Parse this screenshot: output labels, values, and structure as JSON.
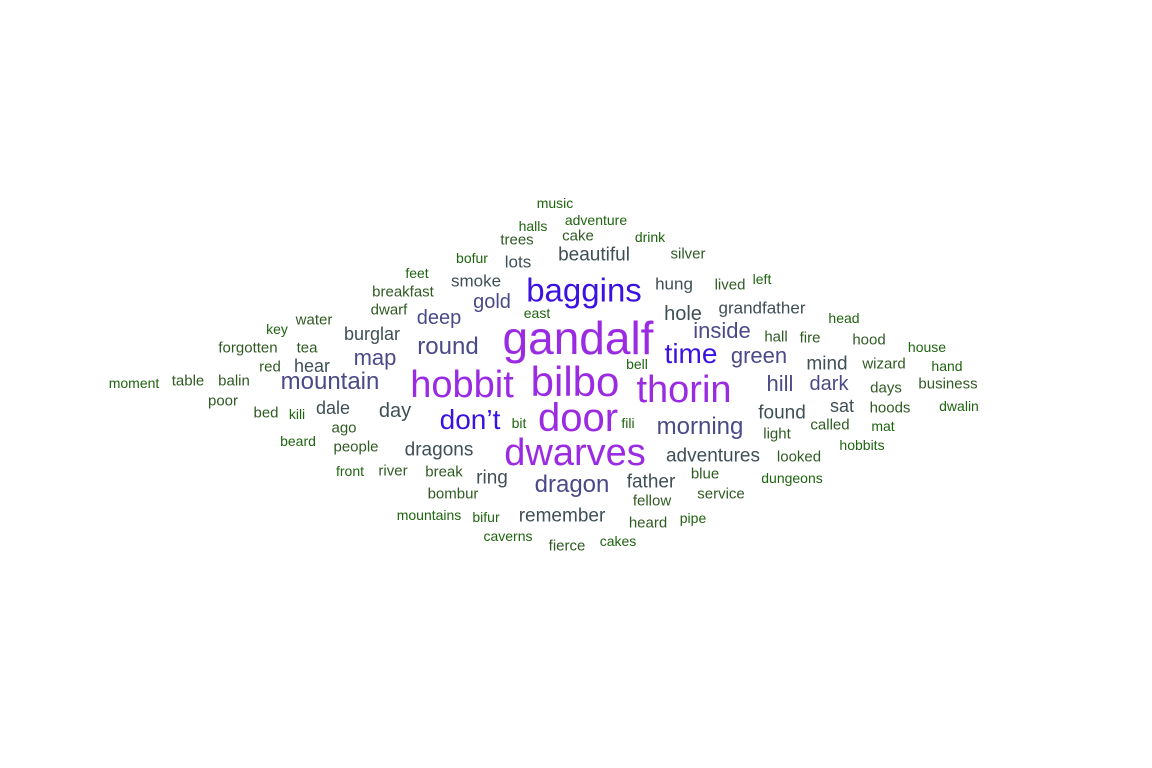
{
  "words": [
    {
      "text": "gandalf",
      "tier": 1
    },
    {
      "text": "bilbo",
      "tier": 1
    },
    {
      "text": "thorin",
      "tier": 1
    },
    {
      "text": "hobbit",
      "tier": 1
    },
    {
      "text": "door",
      "tier": 1
    },
    {
      "text": "dwarves",
      "tier": 1
    },
    {
      "text": "baggins",
      "tier": 2
    },
    {
      "text": "time",
      "tier": 2
    },
    {
      "text": "don’t",
      "tier": 2
    },
    {
      "text": "morning",
      "tier": 3
    },
    {
      "text": "mountain",
      "tier": 3
    },
    {
      "text": "round",
      "tier": 3
    },
    {
      "text": "dragon",
      "tier": 3
    },
    {
      "text": "green",
      "tier": 3
    },
    {
      "text": "inside",
      "tier": 3
    },
    {
      "text": "hill",
      "tier": 3
    },
    {
      "text": "map",
      "tier": 3
    },
    {
      "text": "dark",
      "tier": 3
    },
    {
      "text": "gold",
      "tier": 3
    },
    {
      "text": "deep",
      "tier": 3
    },
    {
      "text": "hole",
      "tier": 4
    },
    {
      "text": "adventures",
      "tier": 4
    },
    {
      "text": "dragons",
      "tier": 4
    },
    {
      "text": "remember",
      "tier": 4
    },
    {
      "text": "father",
      "tier": 4
    },
    {
      "text": "beautiful",
      "tier": 4
    },
    {
      "text": "found",
      "tier": 4
    },
    {
      "text": "day",
      "tier": 4
    },
    {
      "text": "mind",
      "tier": 4
    },
    {
      "text": "ring",
      "tier": 4
    },
    {
      "text": "hear",
      "tier": 4
    },
    {
      "text": "sat",
      "tier": 4
    },
    {
      "text": "burglar",
      "tier": 4
    },
    {
      "text": "dale",
      "tier": 4
    },
    {
      "text": "smoke",
      "tier": 4
    },
    {
      "text": "lots",
      "tier": 4
    },
    {
      "text": "hung",
      "tier": 4
    },
    {
      "text": "grandfather",
      "tier": 4
    },
    {
      "text": "cake",
      "tier": 5
    },
    {
      "text": "trees",
      "tier": 5
    },
    {
      "text": "silver",
      "tier": 5
    },
    {
      "text": "breakfast",
      "tier": 5
    },
    {
      "text": "dwarf",
      "tier": 5
    },
    {
      "text": "lived",
      "tier": 5
    },
    {
      "text": "hall",
      "tier": 5
    },
    {
      "text": "fire",
      "tier": 5
    },
    {
      "text": "hood",
      "tier": 5
    },
    {
      "text": "wizard",
      "tier": 5
    },
    {
      "text": "days",
      "tier": 5
    },
    {
      "text": "hoods",
      "tier": 5
    },
    {
      "text": "business",
      "tier": 5
    },
    {
      "text": "water",
      "tier": 5
    },
    {
      "text": "tea",
      "tier": 5
    },
    {
      "text": "red",
      "tier": 5
    },
    {
      "text": "forgotten",
      "tier": 5
    },
    {
      "text": "table",
      "tier": 5
    },
    {
      "text": "balin",
      "tier": 5
    },
    {
      "text": "poor",
      "tier": 5
    },
    {
      "text": "bed",
      "tier": 5
    },
    {
      "text": "people",
      "tier": 5
    },
    {
      "text": "ago",
      "tier": 5
    },
    {
      "text": "light",
      "tier": 5
    },
    {
      "text": "called",
      "tier": 5
    },
    {
      "text": "looked",
      "tier": 5
    },
    {
      "text": "blue",
      "tier": 5
    },
    {
      "text": "fellow",
      "tier": 5
    },
    {
      "text": "service",
      "tier": 5
    },
    {
      "text": "heard",
      "tier": 5
    },
    {
      "text": "break",
      "tier": 5
    },
    {
      "text": "river",
      "tier": 5
    },
    {
      "text": "bombur",
      "tier": 5
    },
    {
      "text": "fierce",
      "tier": 5
    },
    {
      "text": "music",
      "tier": 6
    },
    {
      "text": "adventure",
      "tier": 6
    },
    {
      "text": "halls",
      "tier": 6
    },
    {
      "text": "drink",
      "tier": 6
    },
    {
      "text": "bofur",
      "tier": 6
    },
    {
      "text": "feet",
      "tier": 6
    },
    {
      "text": "left",
      "tier": 6
    },
    {
      "text": "east",
      "tier": 6
    },
    {
      "text": "key",
      "tier": 6
    },
    {
      "text": "head",
      "tier": 6
    },
    {
      "text": "house",
      "tier": 6
    },
    {
      "text": "bell",
      "tier": 6
    },
    {
      "text": "hand",
      "tier": 6
    },
    {
      "text": "moment",
      "tier": 6
    },
    {
      "text": "kili",
      "tier": 6
    },
    {
      "text": "dwalin",
      "tier": 6
    },
    {
      "text": "mat",
      "tier": 6
    },
    {
      "text": "bit",
      "tier": 6
    },
    {
      "text": "fili",
      "tier": 6
    },
    {
      "text": "beard",
      "tier": 6
    },
    {
      "text": "hobbits",
      "tier": 6
    },
    {
      "text": "front",
      "tier": 6
    },
    {
      "text": "dungeons",
      "tier": 6
    },
    {
      "text": "mountains",
      "tier": 6
    },
    {
      "text": "bifur",
      "tier": 6
    },
    {
      "text": "pipe",
      "tier": 6
    },
    {
      "text": "caverns",
      "tier": 6
    },
    {
      "text": "cakes",
      "tier": 6
    }
  ]
}
